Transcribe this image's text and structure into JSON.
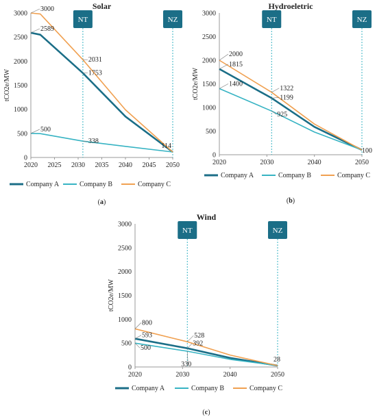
{
  "colors": {
    "company_a": "#1b6e87",
    "company_b": "#36b3c3",
    "company_c": "#f0a050",
    "marker_box": "#1b6e87",
    "marker_line": "#36b3c3",
    "axis": "#999999",
    "text": "#222222"
  },
  "chart_data": [
    {
      "type": "line",
      "panel": "(a)",
      "title": "Solar",
      "ylabel": "tCO2e/MW",
      "xlim": [
        2020,
        2050
      ],
      "ylim": [
        0,
        3000
      ],
      "xticks": [
        "2020",
        "2025",
        "2030",
        "2035",
        "2040",
        "2045",
        "2050"
      ],
      "yticks": [
        "0",
        "500",
        "1000",
        "1500",
        "2000",
        "2500",
        "3000"
      ],
      "markers": [
        {
          "label": "NT",
          "x": 2031
        },
        {
          "label": "NZ",
          "x": 2050
        }
      ],
      "series": [
        {
          "name": "Company A",
          "color_key": "company_a",
          "points": [
            [
              2020,
              2589
            ],
            [
              2022,
              2550
            ],
            [
              2031,
              1753
            ],
            [
              2040,
              850
            ],
            [
              2050,
              114
            ]
          ]
        },
        {
          "name": "Company B",
          "color_key": "company_b",
          "points": [
            [
              2020,
              500
            ],
            [
              2022,
              495
            ],
            [
              2031,
              338
            ],
            [
              2040,
              230
            ],
            [
              2050,
              114
            ]
          ]
        },
        {
          "name": "Company C",
          "color_key": "company_c",
          "points": [
            [
              2020,
              3000
            ],
            [
              2022,
              2980
            ],
            [
              2031,
              2031
            ],
            [
              2040,
              990
            ],
            [
              2050,
              114
            ]
          ]
        }
      ],
      "annotations": [
        {
          "text": "3000",
          "x": 2020,
          "y": 3000
        },
        {
          "text": "2589",
          "x": 2020,
          "y": 2589
        },
        {
          "text": "500",
          "x": 2020,
          "y": 500
        },
        {
          "text": "2031",
          "x": 2031,
          "y": 2031
        },
        {
          "text": "1753",
          "x": 2031,
          "y": 1753
        },
        {
          "text": "338",
          "x": 2031,
          "y": 338
        },
        {
          "text": "114",
          "x": 2050,
          "y": 114
        }
      ]
    },
    {
      "type": "line",
      "panel": "(b)",
      "title": "Hydroeletric",
      "ylabel": "tCO2e/MW",
      "xlim": [
        2020,
        2050
      ],
      "ylim": [
        0,
        3000
      ],
      "xticks": [
        "2020",
        "2030",
        "2040",
        "2050"
      ],
      "yticks": [
        "0",
        "500",
        "1000",
        "1500",
        "2000",
        "2500",
        "3000"
      ],
      "markers": [
        {
          "label": "NT",
          "x": 2031
        },
        {
          "label": "NZ",
          "x": 2050
        }
      ],
      "series": [
        {
          "name": "Company A",
          "color_key": "company_a",
          "points": [
            [
              2020,
              1815
            ],
            [
              2031,
              1199
            ],
            [
              2040,
              590
            ],
            [
              2050,
              100
            ]
          ]
        },
        {
          "name": "Company B",
          "color_key": "company_b",
          "points": [
            [
              2020,
              1400
            ],
            [
              2031,
              925
            ],
            [
              2040,
              480
            ],
            [
              2050,
              100
            ]
          ]
        },
        {
          "name": "Company C",
          "color_key": "company_c",
          "points": [
            [
              2020,
              2000
            ],
            [
              2031,
              1322
            ],
            [
              2040,
              650
            ],
            [
              2050,
              100
            ]
          ]
        }
      ],
      "annotations": [
        {
          "text": "2000",
          "x": 2020,
          "y": 2000
        },
        {
          "text": "1815",
          "x": 2020,
          "y": 1815
        },
        {
          "text": "1400",
          "x": 2020,
          "y": 1400
        },
        {
          "text": "1322",
          "x": 2031,
          "y": 1322
        },
        {
          "text": "1199",
          "x": 2031,
          "y": 1199
        },
        {
          "text": "925",
          "x": 2031,
          "y": 925
        },
        {
          "text": "100",
          "x": 2050,
          "y": 100
        }
      ]
    },
    {
      "type": "line",
      "panel": "(c)",
      "title": "Wind",
      "ylabel": "tCO2e/MW",
      "xlim": [
        2020,
        2050
      ],
      "ylim": [
        0,
        3000
      ],
      "xticks": [
        "2020",
        "2030",
        "2040",
        "2050"
      ],
      "yticks": [
        "0",
        "500",
        "1000",
        "1500",
        "2000",
        "2500",
        "3000"
      ],
      "markers": [
        {
          "label": "NT",
          "x": 2031
        },
        {
          "label": "NZ",
          "x": 2050
        }
      ],
      "series": [
        {
          "name": "Company A",
          "color_key": "company_a",
          "points": [
            [
              2020,
              593
            ],
            [
              2031,
              392
            ],
            [
              2040,
              190
            ],
            [
              2050,
              28
            ]
          ]
        },
        {
          "name": "Company B",
          "color_key": "company_b",
          "points": [
            [
              2020,
              500
            ],
            [
              2031,
              330
            ],
            [
              2040,
              160
            ],
            [
              2050,
              28
            ]
          ]
        },
        {
          "name": "Company C",
          "color_key": "company_c",
          "points": [
            [
              2020,
              800
            ],
            [
              2031,
              528
            ],
            [
              2040,
              250
            ],
            [
              2050,
              28
            ]
          ]
        }
      ],
      "annotations": [
        {
          "text": "800",
          "x": 2020,
          "y": 800
        },
        {
          "text": "593",
          "x": 2020,
          "y": 593
        },
        {
          "text": "500",
          "x": 2020,
          "y": 500
        },
        {
          "text": "528",
          "x": 2031,
          "y": 528
        },
        {
          "text": "392",
          "x": 2031,
          "y": 392
        },
        {
          "text": "330",
          "x": 2031,
          "y": 330
        },
        {
          "text": "28",
          "x": 2050,
          "y": 28
        }
      ]
    }
  ]
}
